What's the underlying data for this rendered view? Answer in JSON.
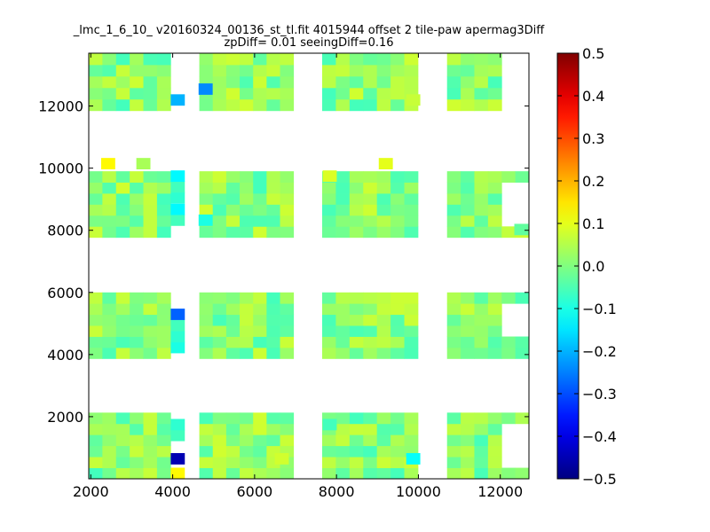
{
  "chart_data": {
    "type": "heatmap",
    "title": "_lmc_1_6_10_ v20160324_00136_st_tl.fit 4015944 offset 2 tile-paw apermag3Diff",
    "subtitle": "zpDiff= 0.01 seeingDiff=0.16",
    "xlim": [
      1950,
      12700
    ],
    "ylim": [
      0,
      13700
    ],
    "x_ticks": [
      2000,
      4000,
      6000,
      8000,
      10000,
      12000
    ],
    "x_tick_labels": [
      "2000",
      "4000",
      "6000",
      "8000",
      "10000",
      "12000"
    ],
    "y_ticks": [
      2000,
      4000,
      6000,
      8000,
      10000,
      12000
    ],
    "y_tick_labels": [
      "2000",
      "4000",
      "6000",
      "8000",
      "10000",
      "12000"
    ],
    "colorbar": {
      "colormap": "jet",
      "vmin": -0.5,
      "vmax": 0.5,
      "ticks": [
        -0.5,
        -0.4,
        -0.3,
        -0.2,
        -0.1,
        0.0,
        0.1,
        0.2,
        0.3,
        0.4,
        0.5
      ],
      "tick_labels": [
        "−0.5",
        "−0.4",
        "−0.3",
        "−0.2",
        "−0.1",
        "0.0",
        "0.1",
        "0.2",
        "0.3",
        "0.4",
        "0.5"
      ]
    },
    "cell_size": [
      335,
      355
    ],
    "grid_on": false,
    "column_blocks": [
      {
        "x_range": [
          1950,
          3950
        ],
        "cols": 6
      },
      {
        "x_range": [
          4650,
          6950
        ],
        "cols": 7
      },
      {
        "x_range": [
          7650,
          9990
        ],
        "cols": 7
      },
      {
        "x_range": [
          10700,
          12700
        ],
        "cols": 6
      }
    ],
    "row_blocks": [
      {
        "y_range": [
          0,
          2130
        ],
        "rows": 6
      },
      {
        "y_range": [
          3870,
          6000
        ],
        "rows": 6
      },
      {
        "y_range": [
          7770,
          9900
        ],
        "rows": 6
      },
      {
        "y_range": [
          11850,
          13700
        ],
        "rows": 5
      }
    ],
    "typical_value_range": [
      -0.06,
      0.08
    ],
    "notable_cells": [
      {
        "x": 4120,
        "y": 180,
        "value": 0.13
      },
      {
        "x": 4120,
        "y": 650,
        "value": -0.45
      },
      {
        "x": 4120,
        "y": 1400,
        "value": -0.06
      },
      {
        "x": 4120,
        "y": 1750,
        "value": -0.08
      },
      {
        "x": 4120,
        "y": 4230,
        "value": -0.1
      },
      {
        "x": 4120,
        "y": 4580,
        "value": -0.08
      },
      {
        "x": 4120,
        "y": 4940,
        "value": -0.06
      },
      {
        "x": 4120,
        "y": 5300,
        "value": -0.28
      },
      {
        "x": 4120,
        "y": 8330,
        "value": -0.06
      },
      {
        "x": 4120,
        "y": 8680,
        "value": -0.13
      },
      {
        "x": 4120,
        "y": 9050,
        "value": -0.08
      },
      {
        "x": 4120,
        "y": 9400,
        "value": -0.06
      },
      {
        "x": 4120,
        "y": 9750,
        "value": -0.13
      },
      {
        "x": 4120,
        "y": 12200,
        "value": -0.2
      },
      {
        "x": 4800,
        "y": 12550,
        "value": -0.24
      },
      {
        "x": 4800,
        "y": 8330,
        "value": -0.1
      },
      {
        "x": 2420,
        "y": 10150,
        "value": 0.13
      },
      {
        "x": 3280,
        "y": 10150,
        "value": 0.04
      },
      {
        "x": 9200,
        "y": 10150,
        "value": 0.1
      },
      {
        "x": 7830,
        "y": 9750,
        "value": 0.09
      },
      {
        "x": 9870,
        "y": 650,
        "value": -0.12
      },
      {
        "x": 7830,
        "y": 1750,
        "value": -0.06
      },
      {
        "x": 6660,
        "y": 650,
        "value": 0.08
      },
      {
        "x": 12510,
        "y": 8030,
        "value": -0.03
      },
      {
        "x": 9870,
        "y": 12200,
        "value": 0.07
      }
    ],
    "missing_regions": [
      {
        "x_range": [
          4280,
          4650
        ],
        "y_range": [
          1050,
          2130
        ]
      },
      {
        "x_range": [
          3950,
          4650
        ],
        "y_range": [
          1780,
          2130
        ]
      },
      {
        "x_range": [
          3950,
          4650
        ],
        "y_range": [
          5660,
          6000
        ]
      },
      {
        "x_range": [
          3950,
          4650
        ],
        "y_range": [
          11850,
          12420
        ]
      },
      {
        "x_range": [
          12040,
          12700
        ],
        "y_range": [
          4500,
          5660
        ]
      },
      {
        "x_range": [
          12040,
          12700
        ],
        "y_range": [
          8170,
          9540
        ]
      },
      {
        "x_range": [
          12040,
          12700
        ],
        "y_range": [
          430,
          1780
        ]
      },
      {
        "x_range": [
          12040,
          12700
        ],
        "y_range": [
          11850,
          13700
        ]
      },
      {
        "x_range": [
          10000,
          10700
        ],
        "y_range": [
          0,
          1050
        ]
      }
    ]
  }
}
